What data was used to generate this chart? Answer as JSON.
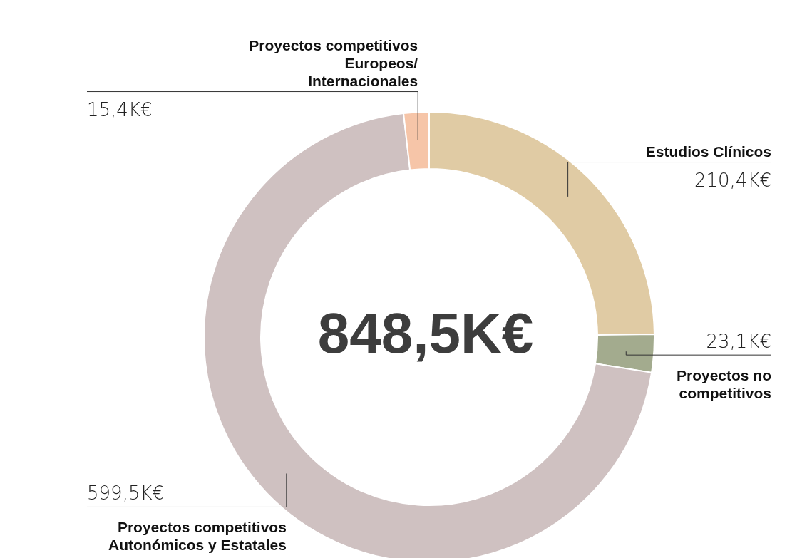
{
  "chart_data": {
    "type": "donut",
    "title": "848,5K€",
    "categories": [
      "Estudios Clínicos",
      "Proyectos no competitivos",
      "Proyectos competitivos Autonómicos y Estatales",
      "Proyectos competitivos Europeos/ Internacionales"
    ],
    "values": [
      210.4,
      23.1,
      599.5,
      15.4
    ],
    "colors": [
      "#e0cba4",
      "#a3ab8e",
      "#cfc1c1",
      "#f6c5a8"
    ],
    "value_labels": [
      "210,4K€",
      "23,1K€",
      "599,5K€",
      "15,4K€"
    ],
    "legend": false
  }
}
